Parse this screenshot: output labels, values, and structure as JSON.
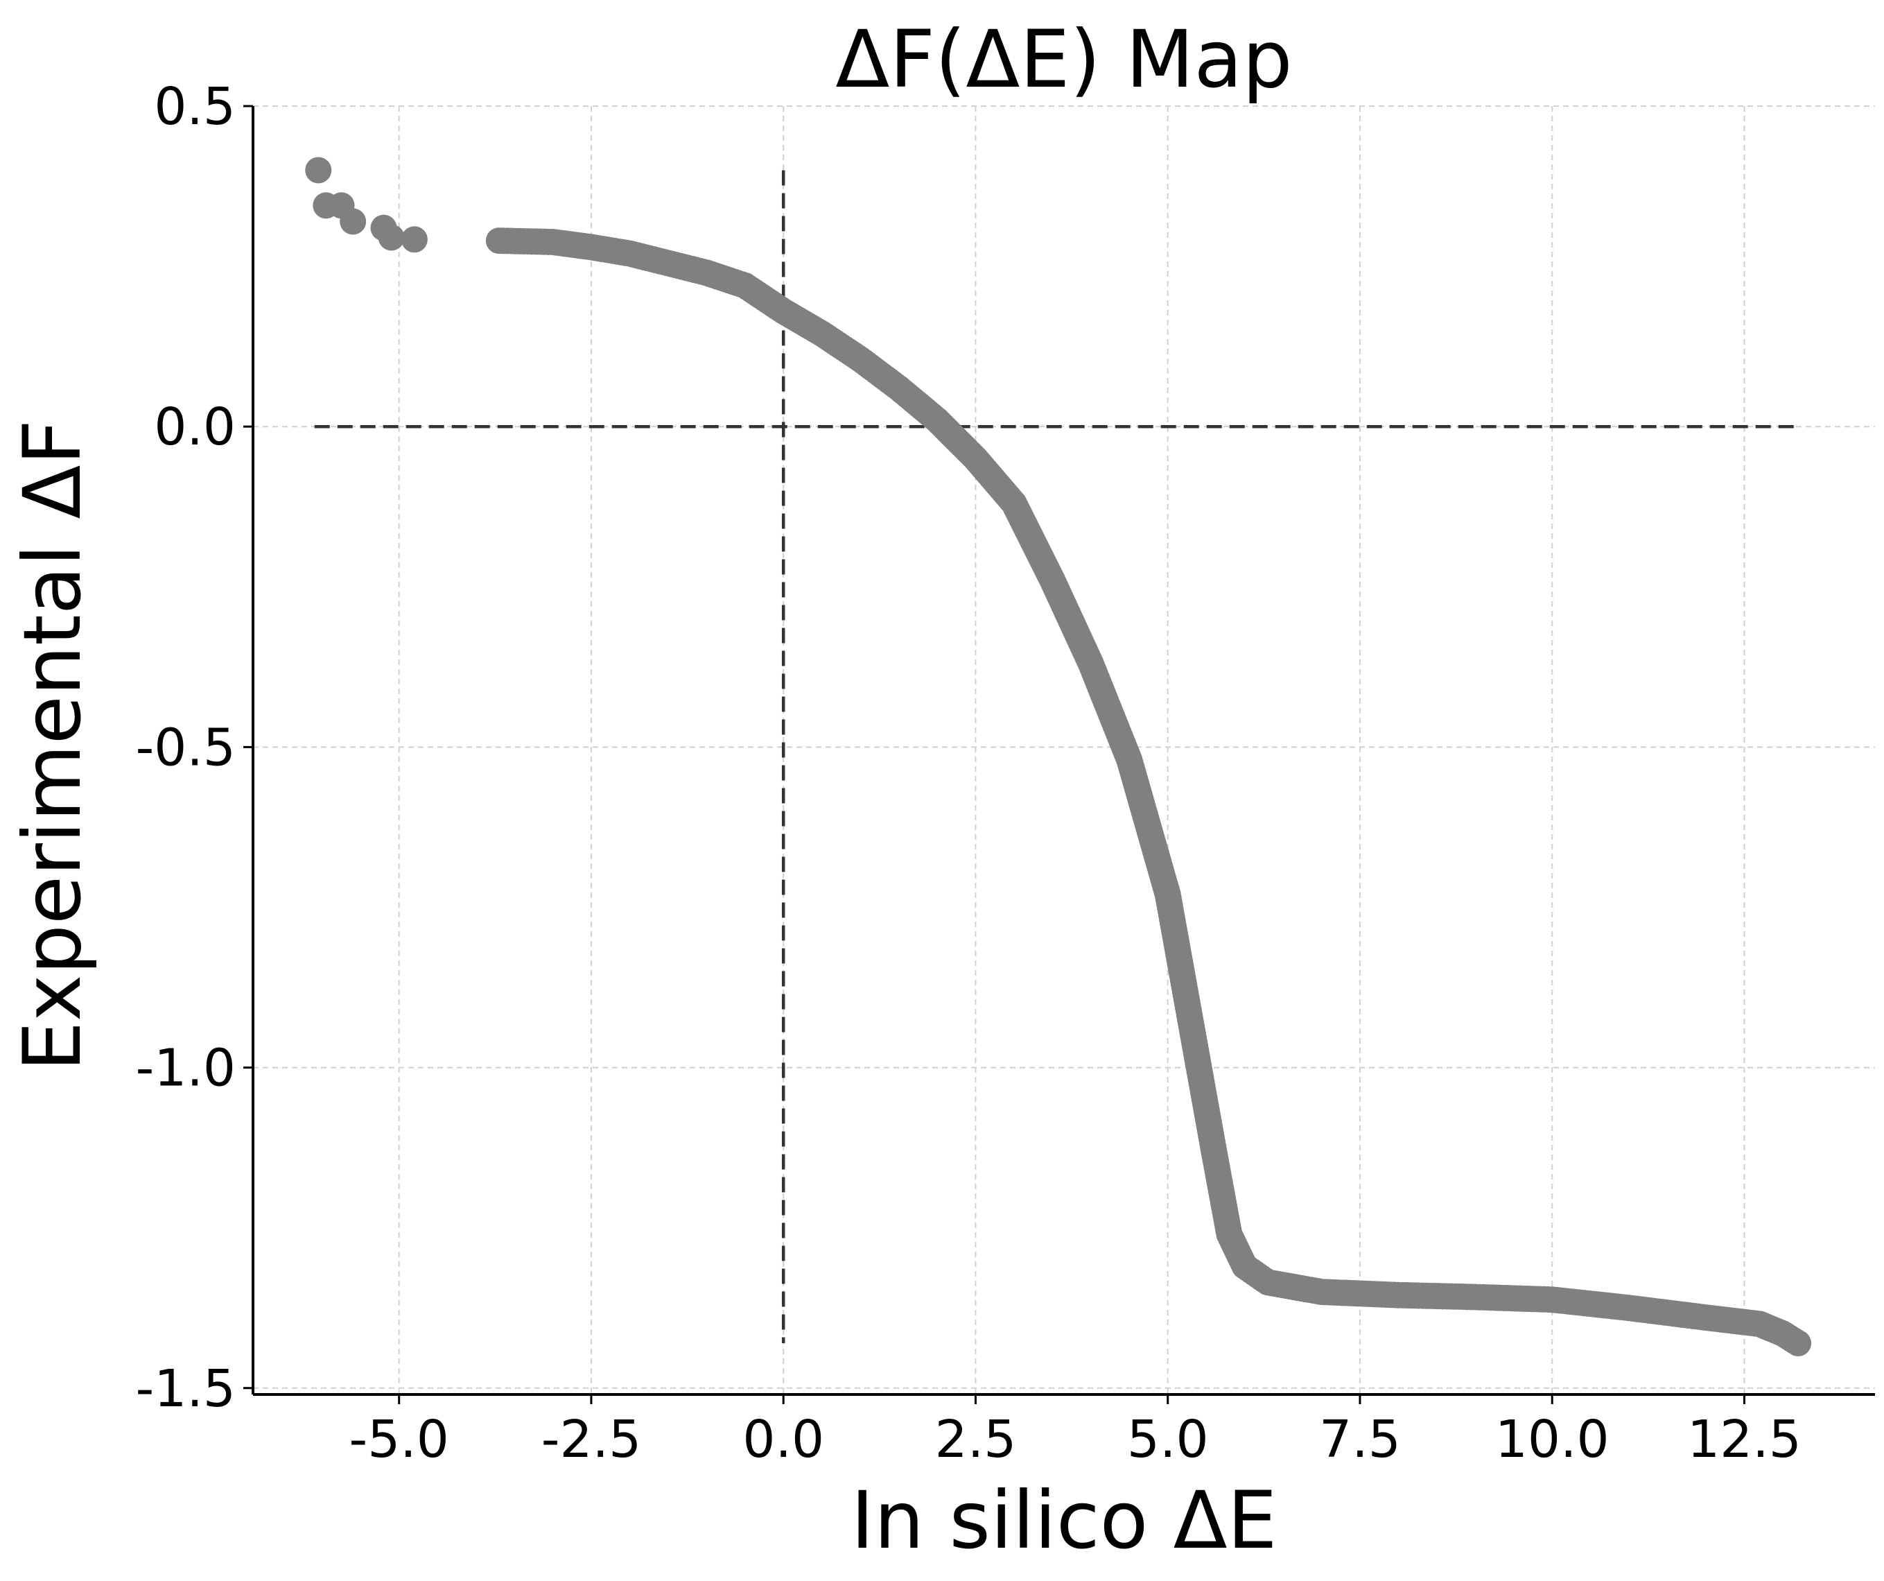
{
  "chart_data": {
    "type": "scatter",
    "title": "ΔF(ΔE)  Map",
    "xlabel": "In silico ΔE",
    "ylabel": "Experimental ΔF",
    "xlim": [
      -6.9,
      14.2
    ],
    "ylim": [
      -1.51,
      0.5
    ],
    "xticks": [
      "-5.0",
      "-2.5",
      "0.0",
      "2.5",
      "5.0",
      "7.5",
      "10.0",
      "12.5"
    ],
    "yticks": [
      "0.5",
      "0.0",
      "-0.5",
      "-1.0",
      "-1.5"
    ],
    "grid": true,
    "marker_color": "#808080",
    "reference_line_color": "#333333",
    "reference_lines": {
      "horizontal": {
        "y": 0.0,
        "x_range": [
          -6.1,
          13.2
        ]
      },
      "vertical": {
        "x": 0.0,
        "y_range": [
          -1.43,
          0.4
        ]
      }
    },
    "outliers": [
      {
        "x": -6.05,
        "y": 0.4
      },
      {
        "x": -5.95,
        "y": 0.345
      },
      {
        "x": -5.75,
        "y": 0.345
      },
      {
        "x": -5.6,
        "y": 0.32
      },
      {
        "x": -5.2,
        "y": 0.31
      },
      {
        "x": -5.1,
        "y": 0.295
      },
      {
        "x": -4.8,
        "y": 0.292
      }
    ],
    "curve": [
      {
        "x": -3.7,
        "y": 0.29
      },
      {
        "x": -3.0,
        "y": 0.288
      },
      {
        "x": -2.5,
        "y": 0.28
      },
      {
        "x": -2.0,
        "y": 0.27
      },
      {
        "x": -1.5,
        "y": 0.255
      },
      {
        "x": -1.0,
        "y": 0.24
      },
      {
        "x": -0.5,
        "y": 0.22
      },
      {
        "x": 0.0,
        "y": 0.18
      },
      {
        "x": 0.5,
        "y": 0.145
      },
      {
        "x": 1.0,
        "y": 0.105
      },
      {
        "x": 1.5,
        "y": 0.06
      },
      {
        "x": 2.0,
        "y": 0.01
      },
      {
        "x": 2.5,
        "y": -0.05
      },
      {
        "x": 3.0,
        "y": -0.12
      },
      {
        "x": 3.5,
        "y": -0.24
      },
      {
        "x": 4.0,
        "y": -0.37
      },
      {
        "x": 4.5,
        "y": -0.52
      },
      {
        "x": 5.0,
        "y": -0.73
      },
      {
        "x": 5.3,
        "y": -0.93
      },
      {
        "x": 5.6,
        "y": -1.13
      },
      {
        "x": 5.8,
        "y": -1.26
      },
      {
        "x": 6.0,
        "y": -1.31
      },
      {
        "x": 6.3,
        "y": -1.335
      },
      {
        "x": 7.0,
        "y": -1.35
      },
      {
        "x": 8.0,
        "y": -1.355
      },
      {
        "x": 9.0,
        "y": -1.358
      },
      {
        "x": 10.0,
        "y": -1.362
      },
      {
        "x": 11.0,
        "y": -1.375
      },
      {
        "x": 12.0,
        "y": -1.39
      },
      {
        "x": 12.7,
        "y": -1.4
      },
      {
        "x": 13.0,
        "y": -1.415
      },
      {
        "x": 13.2,
        "y": -1.43
      }
    ]
  }
}
